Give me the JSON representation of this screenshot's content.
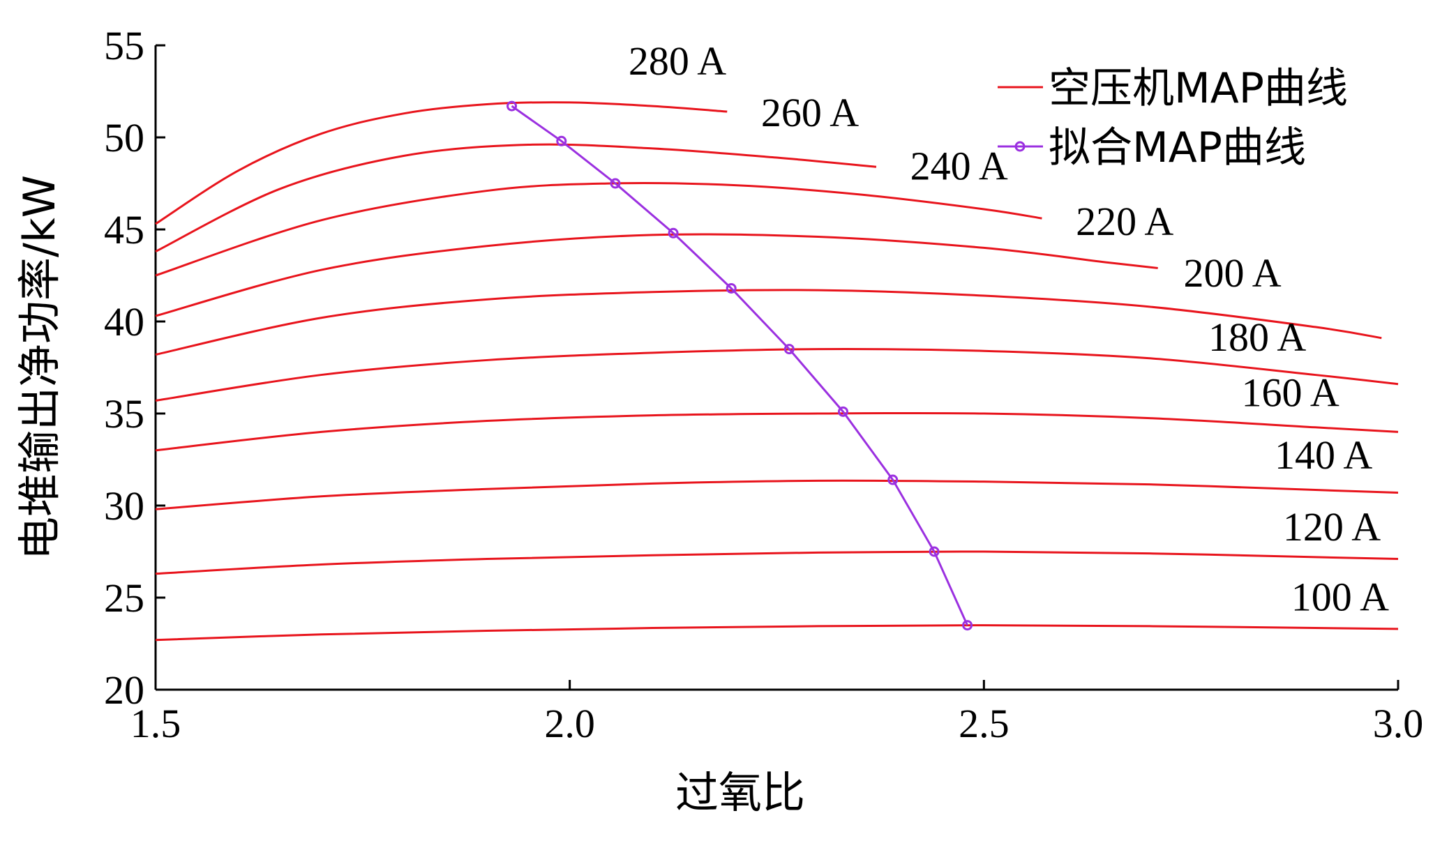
{
  "chart_data": {
    "type": "line",
    "xlabel": "过氧比",
    "ylabel": "电堆输出净功率/kW",
    "xlim": [
      1.5,
      3.0
    ],
    "ylim": [
      20,
      55
    ],
    "x_ticks": [
      "1.5",
      "2.0",
      "2.5",
      "3.0"
    ],
    "y_ticks": [
      "20",
      "25",
      "30",
      "35",
      "40",
      "45",
      "50",
      "55"
    ],
    "grid": false,
    "legend_position": "top-right",
    "legend": [
      {
        "label": "空压机MAP曲线",
        "color": "#e8141c",
        "marker": "none"
      },
      {
        "label": "拟合MAP曲线",
        "color": "#9b30e0",
        "marker": "circle"
      }
    ],
    "series": [
      {
        "name": "100 A",
        "color": "#e8141c",
        "x": [
          1.5,
          1.7,
          1.9,
          2.1,
          2.3,
          2.5,
          2.7,
          2.9,
          3.0
        ],
        "y": [
          22.7,
          23.0,
          23.2,
          23.35,
          23.45,
          23.5,
          23.45,
          23.35,
          23.3
        ]
      },
      {
        "name": "120 A",
        "color": "#e8141c",
        "x": [
          1.5,
          1.7,
          1.9,
          2.1,
          2.3,
          2.5,
          2.7,
          2.9,
          3.0
        ],
        "y": [
          26.3,
          26.8,
          27.1,
          27.3,
          27.45,
          27.5,
          27.4,
          27.2,
          27.1
        ]
      },
      {
        "name": "140 A",
        "color": "#e8141c",
        "x": [
          1.5,
          1.7,
          1.9,
          2.1,
          2.3,
          2.5,
          2.7,
          2.9,
          3.0
        ],
        "y": [
          29.8,
          30.5,
          30.9,
          31.2,
          31.35,
          31.3,
          31.15,
          30.85,
          30.7
        ]
      },
      {
        "name": "160 A",
        "color": "#e8141c",
        "x": [
          1.5,
          1.7,
          1.9,
          2.1,
          2.3,
          2.5,
          2.7,
          2.9,
          3.0
        ],
        "y": [
          33.0,
          34.0,
          34.6,
          34.9,
          35.0,
          35.0,
          34.75,
          34.25,
          34.0
        ]
      },
      {
        "name": "180 A",
        "color": "#e8141c",
        "x": [
          1.5,
          1.7,
          1.9,
          2.1,
          2.3,
          2.5,
          2.7,
          2.9,
          3.0
        ],
        "y": [
          35.7,
          37.1,
          37.9,
          38.3,
          38.5,
          38.4,
          38.0,
          37.1,
          36.6
        ]
      },
      {
        "name": "200 A",
        "color": "#e8141c",
        "x": [
          1.5,
          1.7,
          1.9,
          2.1,
          2.3,
          2.5,
          2.7,
          2.9,
          2.98
        ],
        "y": [
          38.2,
          40.2,
          41.2,
          41.6,
          41.7,
          41.4,
          40.8,
          39.7,
          39.1
        ]
      },
      {
        "name": "220 A",
        "color": "#e8141c",
        "x": [
          1.5,
          1.7,
          1.9,
          2.1,
          2.3,
          2.5,
          2.65,
          2.71
        ],
        "y": [
          40.3,
          42.8,
          44.1,
          44.7,
          44.6,
          44.0,
          43.2,
          42.9
        ]
      },
      {
        "name": "240 A",
        "color": "#e8141c",
        "x": [
          1.5,
          1.7,
          1.9,
          2.05,
          2.2,
          2.35,
          2.5,
          2.57
        ],
        "y": [
          42.5,
          45.5,
          47.1,
          47.5,
          47.4,
          46.9,
          46.1,
          45.6
        ]
      },
      {
        "name": "260 A",
        "color": "#e8141c",
        "x": [
          1.5,
          1.65,
          1.8,
          1.95,
          2.1,
          2.25,
          2.37
        ],
        "y": [
          43.8,
          47.2,
          49.0,
          49.6,
          49.4,
          48.9,
          48.4
        ]
      },
      {
        "name": "280 A",
        "color": "#e8141c",
        "x": [
          1.5,
          1.6,
          1.7,
          1.8,
          1.9,
          2.0,
          2.1,
          2.19
        ],
        "y": [
          45.3,
          48.2,
          50.2,
          51.3,
          51.8,
          51.9,
          51.7,
          51.4
        ]
      },
      {
        "name": "拟合MAP曲线",
        "color": "#9b30e0",
        "marker": "circle",
        "x": [
          1.93,
          1.99,
          2.055,
          2.125,
          2.195,
          2.265,
          2.33,
          2.39,
          2.44,
          2.48
        ],
        "y": [
          51.7,
          49.8,
          47.5,
          44.8,
          41.8,
          38.5,
          35.1,
          31.4,
          27.5,
          23.5
        ]
      }
    ],
    "curve_labels": [
      {
        "text": "280 A",
        "x": 2.13,
        "y": 53.4
      },
      {
        "text": "260 A",
        "x": 2.29,
        "y": 50.6
      },
      {
        "text": "240 A",
        "x": 2.47,
        "y": 47.7
      },
      {
        "text": "220 A",
        "x": 2.67,
        "y": 44.7
      },
      {
        "text": "200 A",
        "x": 2.8,
        "y": 41.9
      },
      {
        "text": "180 A",
        "x": 2.83,
        "y": 38.4
      },
      {
        "text": "160 A",
        "x": 2.87,
        "y": 35.4
      },
      {
        "text": "140 A",
        "x": 2.91,
        "y": 32.0
      },
      {
        "text": "120 A",
        "x": 2.92,
        "y": 28.1
      },
      {
        "text": "100 A",
        "x": 2.93,
        "y": 24.3
      }
    ]
  }
}
